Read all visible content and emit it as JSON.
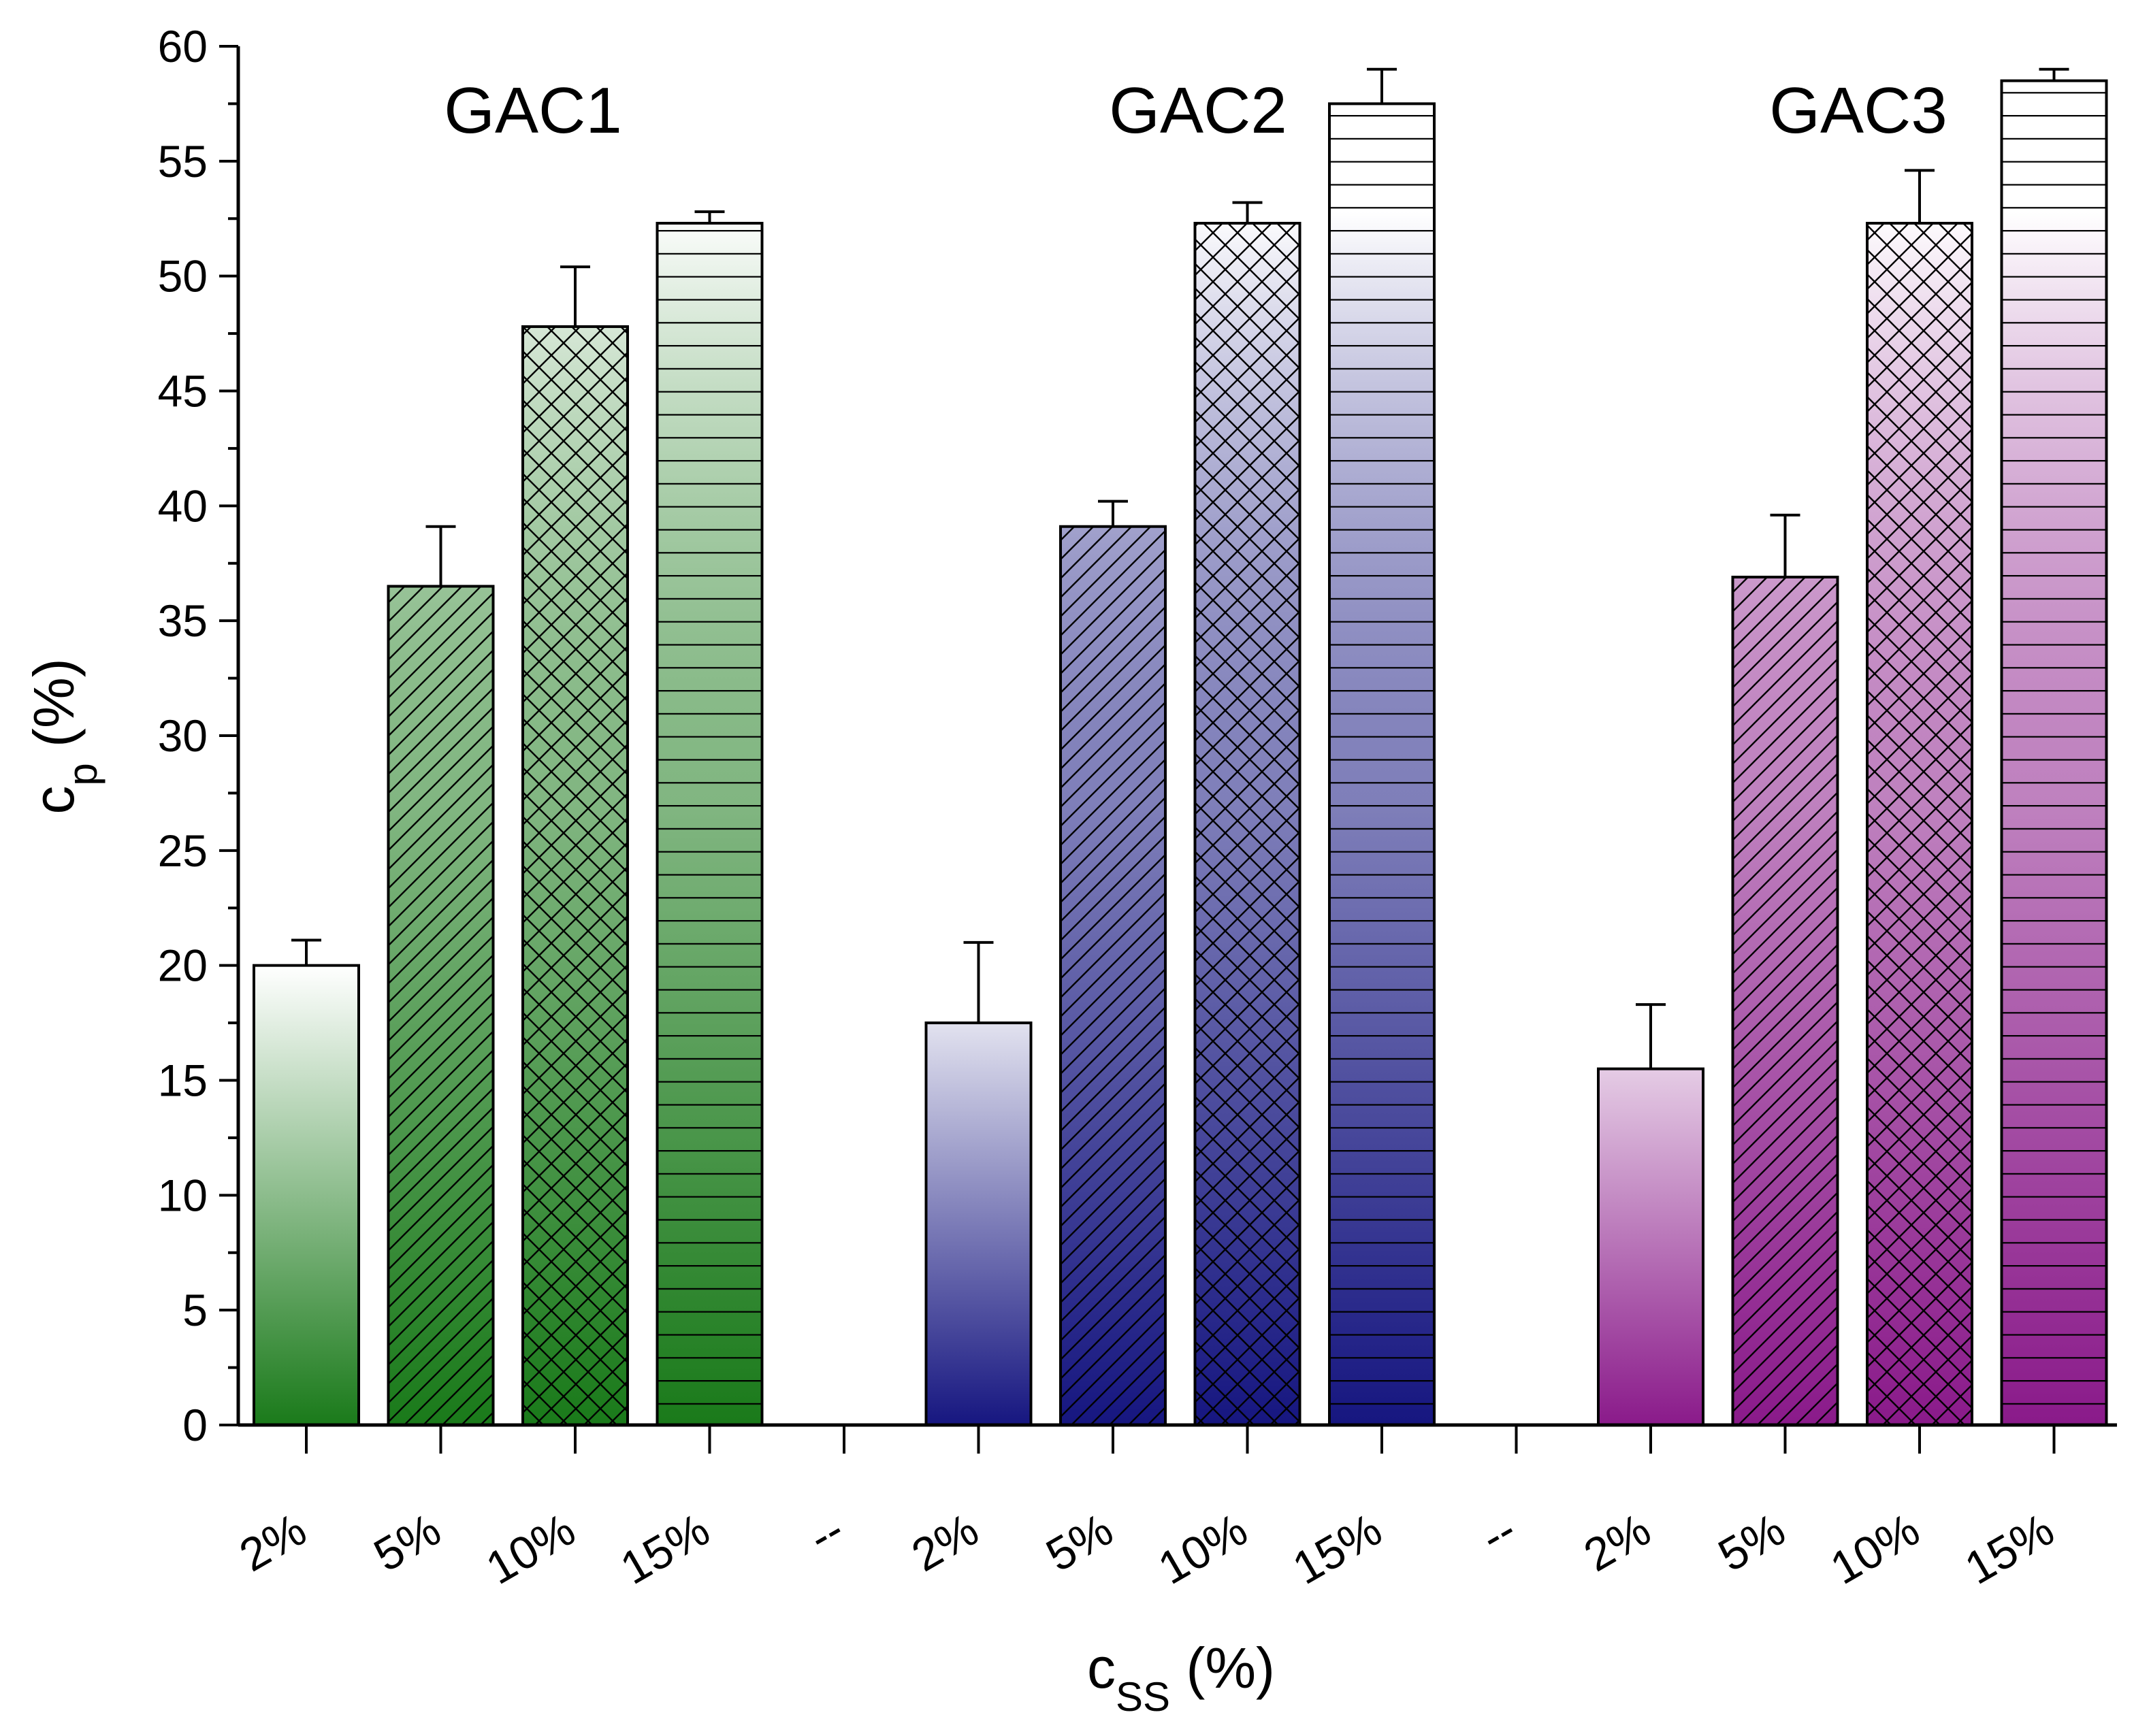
{
  "chart_data": {
    "type": "bar",
    "title": "",
    "ylabel": "c",
    "ylabel_sub": "p",
    "ylabel_suffix": " (%)",
    "xlabel": "c",
    "xlabel_sub": "SS",
    "xlabel_suffix": " (%)",
    "ylim": [
      0,
      60
    ],
    "yticks": [
      "0",
      "5",
      "10",
      "15",
      "20",
      "25",
      "30",
      "35",
      "40",
      "45",
      "50",
      "55",
      "60"
    ],
    "grid": false,
    "x_categories": [
      "2%",
      "5%",
      "10%",
      "15%",
      "--",
      "2%",
      "5%",
      "10%",
      "15%",
      "--",
      "2%",
      "5%",
      "10%",
      "15%"
    ],
    "patterns": [
      "none",
      "diagonal",
      "crosshatch",
      "horizontal"
    ],
    "groups": [
      {
        "name": "GAC1",
        "color": "#1a7a1a",
        "bars": [
          {
            "category": "2%",
            "value": 20.0,
            "error": 1.1
          },
          {
            "category": "5%",
            "value": 36.5,
            "error": 2.6
          },
          {
            "category": "10%",
            "value": 47.8,
            "error": 2.6
          },
          {
            "category": "15%",
            "value": 52.3,
            "error": 0.5
          }
        ]
      },
      {
        "name": "GAC2",
        "color": "#161680",
        "bars": [
          {
            "category": "2%",
            "value": 17.5,
            "error": 3.5
          },
          {
            "category": "5%",
            "value": 39.1,
            "error": 1.1
          },
          {
            "category": "10%",
            "value": 52.3,
            "error": 0.9
          },
          {
            "category": "15%",
            "value": 57.5,
            "error": 1.5
          }
        ]
      },
      {
        "name": "GAC3",
        "color": "#8a1a8a",
        "bars": [
          {
            "category": "2%",
            "value": 15.5,
            "error": 2.8
          },
          {
            "category": "5%",
            "value": 36.9,
            "error": 2.7
          },
          {
            "category": "10%",
            "value": 52.3,
            "error": 2.3
          },
          {
            "category": "15%",
            "value": 58.5,
            "error": 0.5
          }
        ]
      }
    ]
  }
}
